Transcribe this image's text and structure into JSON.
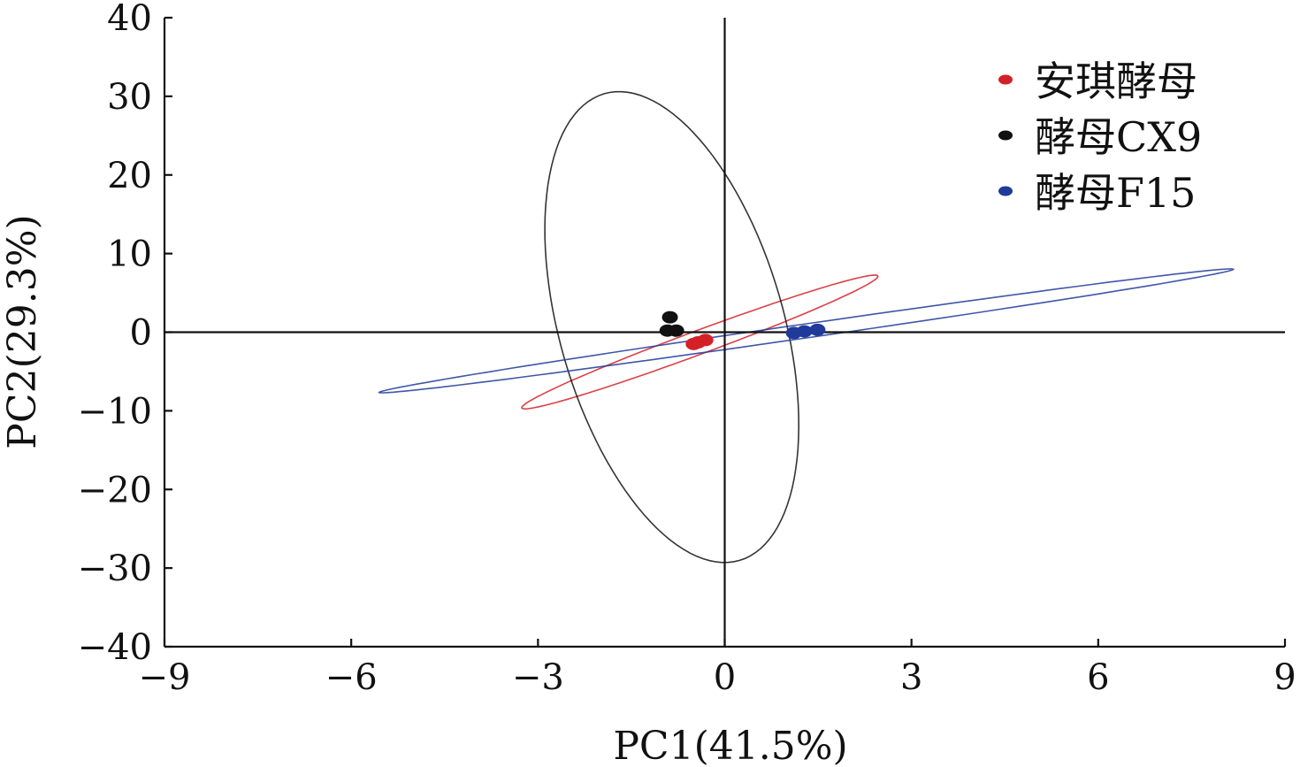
{
  "chart_data": {
    "type": "scatter",
    "title": "",
    "xlabel": "PC1(41.5%)",
    "ylabel": "PC2(29.3%)",
    "xlim": [
      -9,
      9
    ],
    "ylim": [
      -40,
      40
    ],
    "xticks": [
      -9,
      -6,
      -3,
      0,
      3,
      6,
      9
    ],
    "yticks": [
      -40,
      -30,
      -20,
      -10,
      0,
      10,
      20,
      30,
      40
    ],
    "xtick_labels": [
      "−9",
      "−6",
      "−3",
      "0",
      "3",
      "6",
      "9"
    ],
    "ytick_labels": [
      "−40",
      "−30",
      "−20",
      "−10",
      "0",
      "10",
      "20",
      "30",
      "40"
    ],
    "grid": false,
    "reference_lines": {
      "x": 0,
      "y": 0
    },
    "legend_position": "top-right",
    "series": [
      {
        "name": "安琪酵母",
        "color": "#d42027",
        "points": [
          [
            -0.5,
            -1.5
          ],
          [
            -0.43,
            -1.3
          ],
          [
            -0.31,
            -1.0
          ]
        ],
        "ellipse": {
          "center": [
            -0.4,
            -1.25
          ],
          "u": [
            2.86,
            8.35
          ],
          "v": [
            0.0,
            1.6
          ]
        }
      },
      {
        "name": "酵母CX9",
        "color": "#111111",
        "points": [
          [
            -0.88,
            1.9
          ],
          [
            -0.92,
            0.2
          ],
          [
            -0.78,
            0.2
          ]
        ],
        "ellipse": {
          "center": [
            -0.85,
            0.65
          ],
          "u": [
            -0.4,
            29.15
          ],
          "v": [
            2.0,
            -6.85
          ]
        }
      },
      {
        "name": "酵母F15",
        "color": "#1f3a9a",
        "points": [
          [
            1.11,
            -0.1
          ],
          [
            1.28,
            0.1
          ],
          [
            1.49,
            0.3
          ]
        ],
        "ellipse": {
          "center": [
            1.31,
            0.17
          ],
          "u": [
            6.86,
            7.83
          ],
          "v": [
            0.0,
            0.9
          ]
        }
      }
    ]
  }
}
